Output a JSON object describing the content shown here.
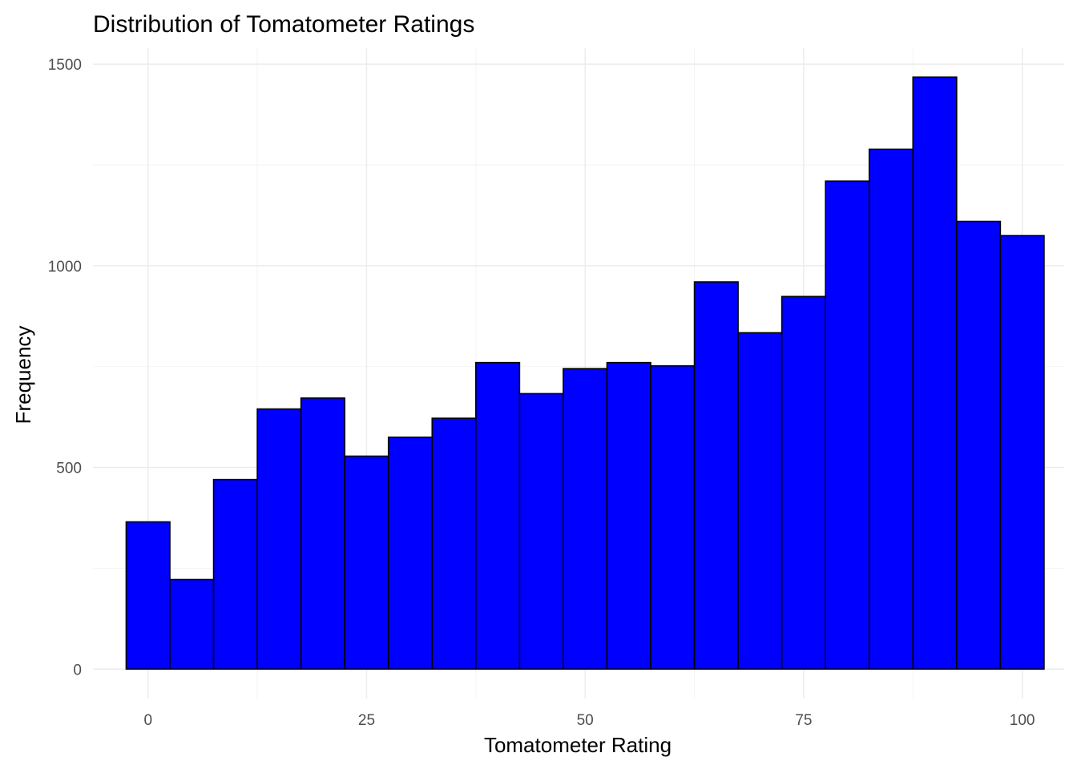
{
  "chart_data": {
    "type": "bar",
    "title": "Distribution of Tomatometer Ratings",
    "xlabel": "Tomatometer Rating",
    "ylabel": "Frequency",
    "bar_color": "#0000ff",
    "bar_outline": "#000000",
    "bin_width": 5,
    "bin_centers": [
      0,
      5,
      10,
      15,
      20,
      25,
      30,
      35,
      40,
      45,
      50,
      55,
      60,
      65,
      70,
      75,
      80,
      85,
      90,
      95,
      100
    ],
    "values": [
      365,
      222,
      470,
      645,
      672,
      528,
      575,
      622,
      760,
      683,
      745,
      760,
      752,
      960,
      834,
      924,
      1210,
      1289,
      1468,
      1110,
      1075
    ],
    "x_ticks": [
      0,
      25,
      50,
      75,
      100
    ],
    "x_tick_labels": [
      "0",
      "25",
      "50",
      "75",
      "100"
    ],
    "y_ticks": [
      0,
      500,
      1000,
      1500
    ],
    "y_tick_labels": [
      "0",
      "500",
      "1000",
      "1500"
    ],
    "xlim": [
      -6.3,
      104.8
    ],
    "ylim": [
      -73,
      1540
    ],
    "grid": true,
    "legend": "none"
  }
}
